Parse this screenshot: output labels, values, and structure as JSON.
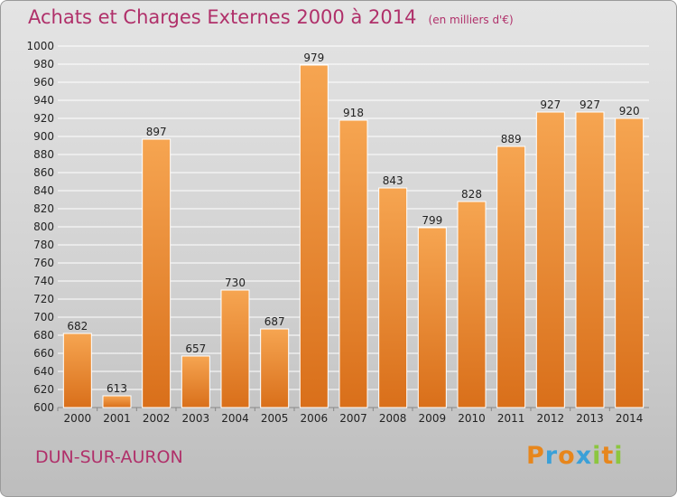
{
  "header": {
    "title": "Achats et Charges Externes 2000 à 2014",
    "unit": "(en milliers d'€)"
  },
  "footer": {
    "city": "DUN-SUR-AURON",
    "logo": "Proxiti"
  },
  "colors": {
    "title": "#b0306a",
    "bar_top": "#f6a551",
    "bar_bottom": "#d96f1a",
    "logo_letters": [
      "#e7861c",
      "#3aa0d8",
      "#e7861c",
      "#3aa0d8",
      "#8cc63f",
      "#e7861c",
      "#8cc63f"
    ]
  },
  "chart_data": {
    "type": "bar",
    "categories": [
      "2000",
      "2001",
      "2002",
      "2003",
      "2004",
      "2005",
      "2006",
      "2007",
      "2008",
      "2009",
      "2010",
      "2011",
      "2012",
      "2013",
      "2014"
    ],
    "values": [
      682,
      613,
      897,
      657,
      730,
      687,
      979,
      918,
      843,
      799,
      828,
      889,
      927,
      927,
      920
    ],
    "ylim": [
      600,
      1000
    ],
    "ytick_step": 20,
    "grid": true,
    "xlabel": "",
    "ylabel": ""
  }
}
